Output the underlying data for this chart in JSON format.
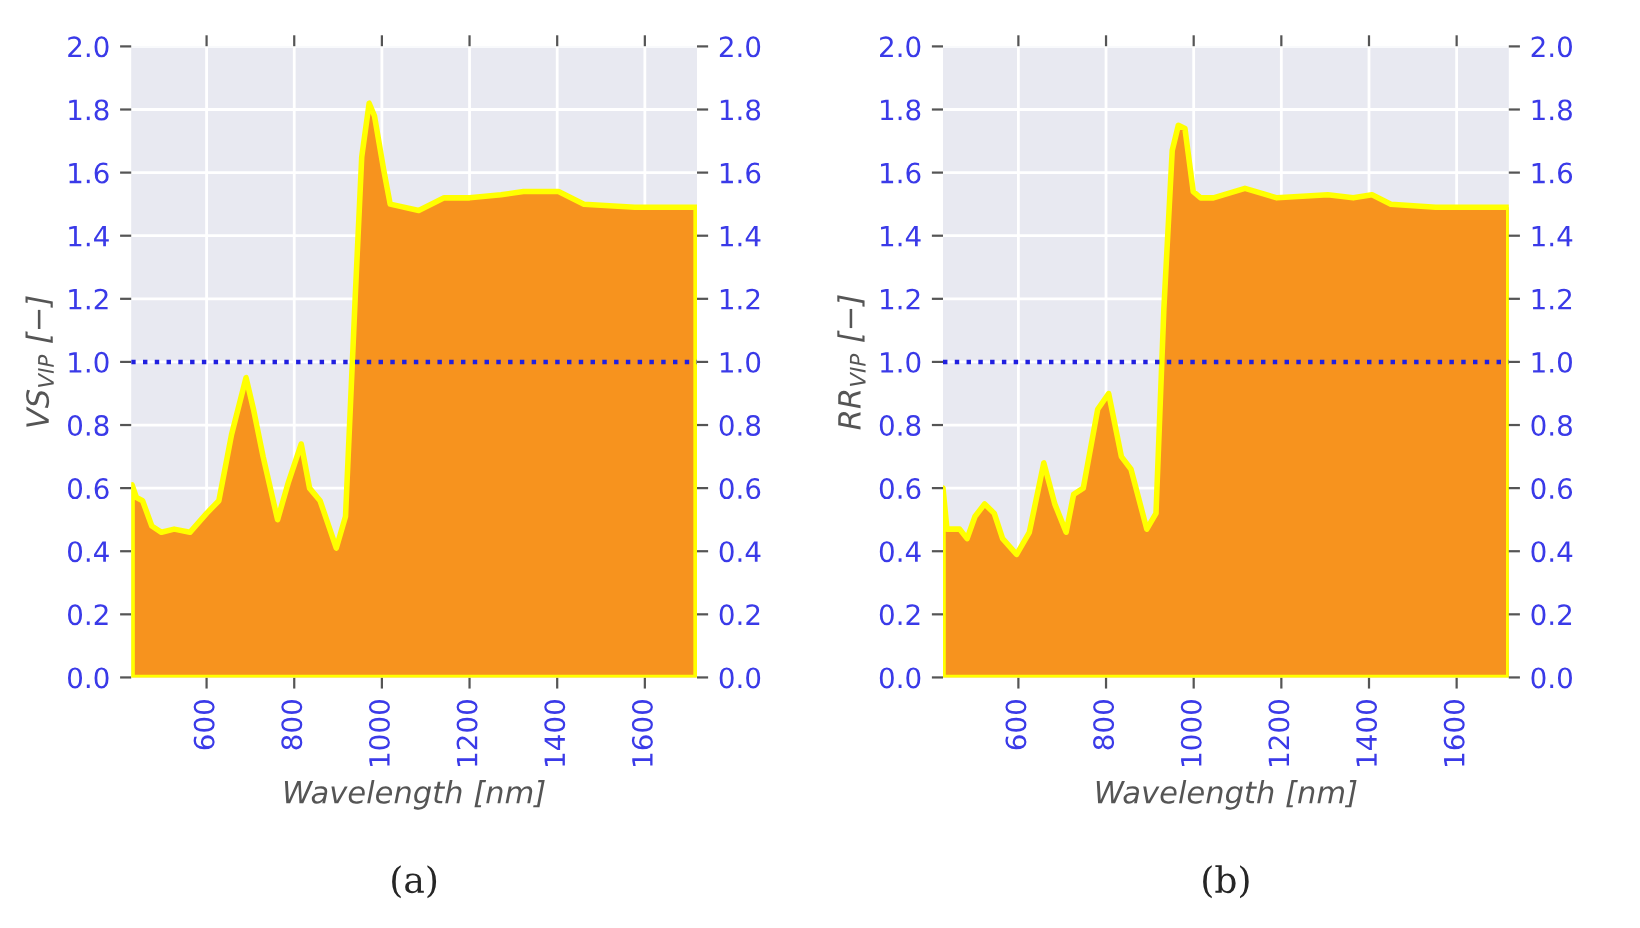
{
  "chart_data": [
    {
      "type": "area",
      "xlabel": "Wavelength [nm]",
      "ylabel": "VS$_{VIP}$ [−]",
      "x": [
        430,
        440,
        454,
        475,
        497,
        526,
        562,
        600,
        628,
        657,
        690,
        707,
        729,
        762,
        787,
        816,
        835,
        859,
        896,
        917,
        939,
        954,
        971,
        983,
        1004,
        1019,
        1084,
        1142,
        1200,
        1272,
        1323,
        1403,
        1461,
        1577,
        1717
      ],
      "series": [
        {
          "color": "#f7931e",
          "values": [
            0.61,
            0.57,
            0.56,
            0.48,
            0.46,
            0.47,
            0.46,
            0.52,
            0.56,
            0.77,
            0.95,
            0.85,
            0.7,
            0.5,
            0.62,
            0.74,
            0.6,
            0.56,
            0.41,
            0.51,
            1.2,
            1.65,
            1.82,
            1.78,
            1.61,
            1.5,
            1.48,
            1.52,
            1.52,
            1.53,
            1.54,
            1.54,
            1.5,
            1.49,
            1.49
          ]
        }
      ],
      "xlim": [
        428,
        1719
      ],
      "ylim": [
        0.0,
        2.0
      ],
      "xticks": [
        600,
        800,
        1000,
        1200,
        1400,
        1600
      ],
      "yticks": [
        {
          "value": 0,
          "label": "0.0"
        },
        0.2,
        0.4,
        0.6,
        0.8,
        {
          "value": 1,
          "label": "1.0"
        },
        1.2,
        1.4,
        1.6,
        1.8,
        {
          "value": 2,
          "label": "2.0"
        }
      ],
      "y2lim": [
        0.0,
        2.0
      ],
      "y2ticks": [
        {
          "value": 0,
          "label": "0.0"
        },
        0.2,
        0.4,
        0.6,
        0.8,
        {
          "value": 1,
          "label": "1.0"
        },
        1.2,
        1.4,
        1.6,
        1.8,
        {
          "value": 2,
          "label": "2.0"
        }
      ],
      "ref_lines": [
        {
          "axis": "y",
          "value": 1.0,
          "color": "#2020e0",
          "line_style": "dotted"
        }
      ],
      "grid": true,
      "annotations": [
        "(a)"
      ]
    },
    {
      "type": "area",
      "xlabel": "Wavelength [nm]",
      "ylabel": "RR$_{VIP}$ [−]",
      "x": [
        428,
        437,
        466,
        483,
        501,
        523,
        545,
        564,
        596,
        625,
        658,
        683,
        709,
        726,
        748,
        781,
        806,
        835,
        857,
        893,
        914,
        932,
        951,
        965,
        980,
        999,
        1016,
        1045,
        1117,
        1190,
        1306,
        1364,
        1407,
        1450,
        1552,
        1719
      ],
      "series": [
        {
          "color": "#f7931e",
          "values": [
            0.6,
            0.47,
            0.47,
            0.44,
            0.51,
            0.55,
            0.52,
            0.44,
            0.39,
            0.46,
            0.68,
            0.55,
            0.46,
            0.58,
            0.6,
            0.85,
            0.9,
            0.7,
            0.66,
            0.47,
            0.52,
            1.17,
            1.67,
            1.75,
            1.74,
            1.54,
            1.52,
            1.52,
            1.55,
            1.52,
            1.53,
            1.52,
            1.53,
            1.5,
            1.49,
            1.49
          ]
        }
      ],
      "xlim": [
        428,
        1719
      ],
      "ylim": [
        0.0,
        2.0
      ],
      "xticks": [
        600,
        800,
        1000,
        1200,
        1400,
        1600
      ],
      "yticks": [
        {
          "value": 0,
          "label": "0.0"
        },
        0.2,
        0.4,
        0.6,
        0.8,
        {
          "value": 1,
          "label": "1.0"
        },
        1.2,
        1.4,
        1.6,
        1.8,
        {
          "value": 2,
          "label": "2.0"
        }
      ],
      "y2lim": [
        0.0,
        2.0
      ],
      "y2ticks": [
        {
          "value": 0,
          "label": "0.0"
        },
        0.2,
        0.4,
        0.6,
        0.8,
        {
          "value": 1,
          "label": "1.0"
        },
        1.2,
        1.4,
        1.6,
        1.8,
        {
          "value": 2,
          "label": "2.0"
        }
      ],
      "ref_lines": [
        {
          "axis": "y",
          "value": 1.0,
          "color": "#2020e0",
          "line_style": "dotted"
        }
      ],
      "grid": true,
      "annotations": [
        "(b)"
      ]
    }
  ]
}
